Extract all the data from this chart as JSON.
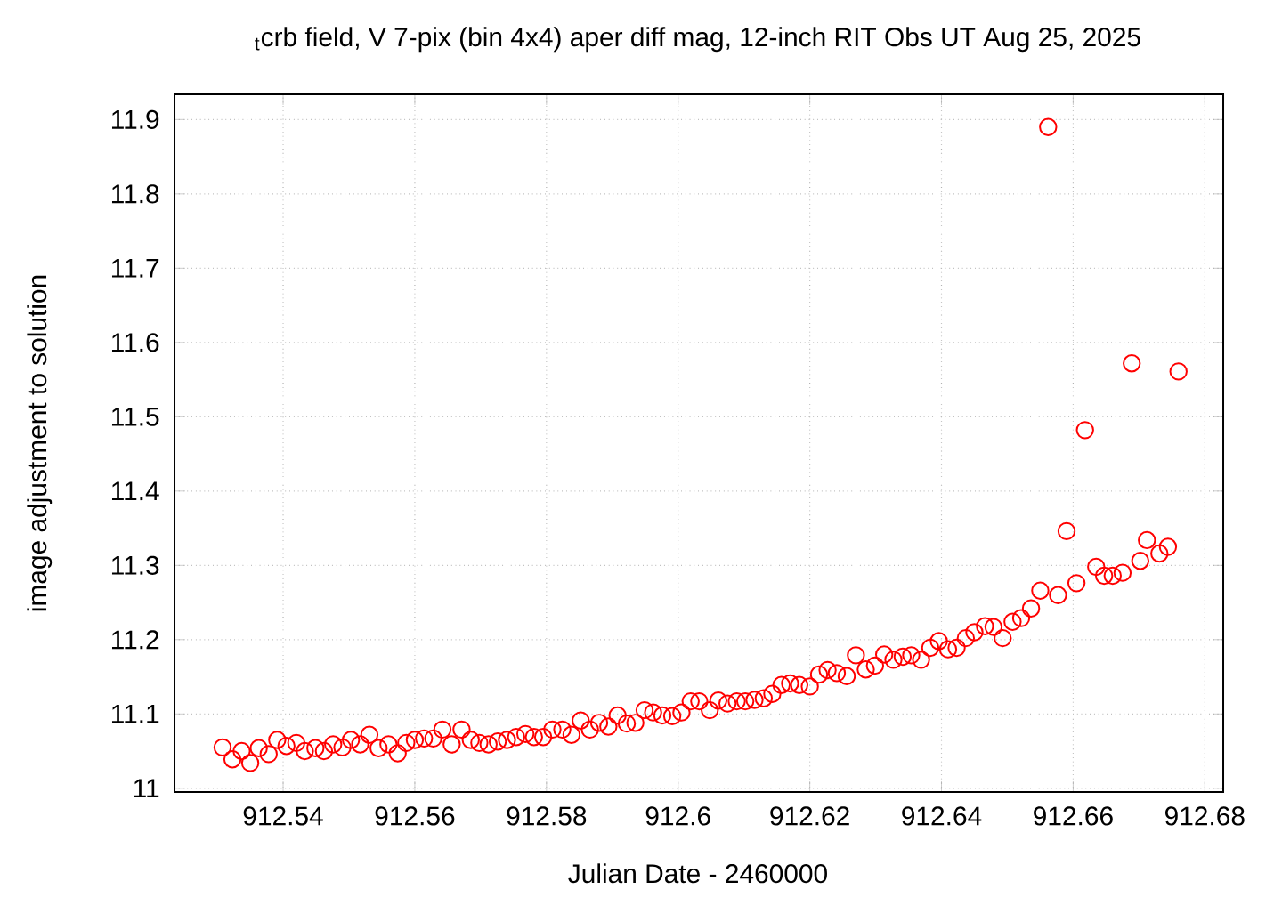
{
  "chart_data": {
    "type": "scatter",
    "title": "$_{t}$crb field, V 7-pix (bin 4x4) aper diff mag,  12-inch RIT Obs UT Aug 25, 2025",
    "xlabel": "Julian Date - 2460000",
    "ylabel": "image adjustment to solution",
    "xlim": [
      912.5235,
      912.6828
    ],
    "ylim": [
      10.995,
      11.934
    ],
    "xticks": [
      912.54,
      912.56,
      912.58,
      912.6,
      912.62,
      912.64,
      912.66,
      912.68
    ],
    "yticks": [
      11,
      11.1,
      11.2,
      11.3,
      11.4,
      11.5,
      11.6,
      11.7,
      11.8,
      11.9
    ],
    "grid": true,
    "marker": "circle",
    "color": "#ff0000",
    "x": [
      912.5308,
      912.5323,
      912.5337,
      912.535,
      912.5363,
      912.5378,
      912.5391,
      912.5405,
      912.542,
      912.5433,
      912.5449,
      912.5462,
      912.5476,
      912.549,
      912.5503,
      912.5517,
      912.5531,
      912.5545,
      912.556,
      912.5574,
      912.5587,
      912.56,
      912.5614,
      912.5628,
      912.5642,
      912.5656,
      912.5671,
      912.5685,
      912.5698,
      912.5712,
      912.5726,
      912.574,
      912.5754,
      912.5768,
      912.5781,
      912.5795,
      912.5809,
      912.5824,
      912.5838,
      912.5852,
      912.5866,
      912.588,
      912.5894,
      912.5908,
      912.5922,
      912.5935,
      912.5949,
      912.5962,
      912.5976,
      912.5991,
      912.6005,
      912.6019,
      912.6032,
      912.6048,
      912.6061,
      912.6075,
      912.6089,
      912.6102,
      912.6116,
      912.613,
      912.6143,
      912.6157,
      912.617,
      912.6184,
      912.62,
      912.6214,
      912.6227,
      912.6241,
      912.6256,
      912.627,
      912.6285,
      912.6299,
      912.6313,
      912.6327,
      912.6341,
      912.6354,
      912.6369,
      912.6383,
      912.6396,
      912.641,
      912.6423,
      912.6437,
      912.645,
      912.6466,
      912.6479,
      912.6493,
      912.6508,
      912.6521,
      912.6536,
      912.655,
      912.6562,
      912.6577,
      912.659,
      912.6605,
      912.6618,
      912.6635,
      912.6647,
      912.666,
      912.6675,
      912.6689,
      912.6702,
      912.6712,
      912.6731,
      912.6744,
      912.676
    ],
    "values": [
      11.055,
      11.039,
      11.05,
      11.034,
      11.054,
      11.046,
      11.065,
      11.057,
      11.061,
      11.05,
      11.054,
      11.05,
      11.059,
      11.055,
      11.065,
      11.059,
      11.072,
      11.054,
      11.059,
      11.047,
      11.061,
      11.065,
      11.067,
      11.067,
      11.079,
      11.059,
      11.079,
      11.065,
      11.061,
      11.059,
      11.063,
      11.065,
      11.069,
      11.073,
      11.069,
      11.069,
      11.079,
      11.079,
      11.072,
      11.091,
      11.079,
      11.088,
      11.083,
      11.098,
      11.087,
      11.088,
      11.105,
      11.102,
      11.098,
      11.097,
      11.102,
      11.117,
      11.117,
      11.105,
      11.118,
      11.114,
      11.117,
      11.117,
      11.119,
      11.121,
      11.127,
      11.139,
      11.141,
      11.139,
      11.137,
      11.153,
      11.159,
      11.155,
      11.151,
      11.179,
      11.16,
      11.165,
      11.18,
      11.173,
      11.177,
      11.179,
      11.173,
      11.189,
      11.198,
      11.187,
      11.189,
      11.202,
      11.21,
      11.218,
      11.217,
      11.202,
      11.224,
      11.229,
      11.242,
      11.266,
      11.89,
      11.26,
      11.346,
      11.276,
      11.482,
      11.298,
      11.286,
      11.286,
      11.29,
      11.572,
      11.306,
      11.334,
      11.316,
      11.325,
      11.561
    ]
  }
}
